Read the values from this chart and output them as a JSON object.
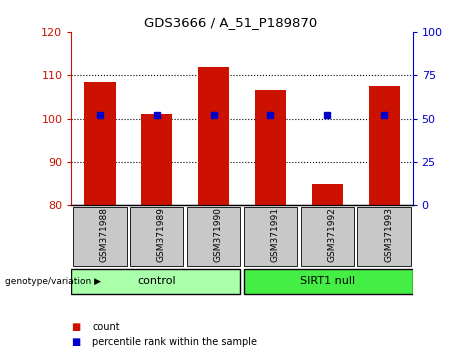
{
  "title": "GDS3666 / A_51_P189870",
  "samples": [
    "GSM371988",
    "GSM371989",
    "GSM371990",
    "GSM371991",
    "GSM371992",
    "GSM371993"
  ],
  "counts": [
    108.5,
    101.0,
    112.0,
    106.5,
    85.0,
    107.5
  ],
  "percentiles": [
    52,
    52,
    52,
    52,
    52,
    52
  ],
  "bar_bottom": 80,
  "ylim_left": [
    80,
    120
  ],
  "ylim_right": [
    0,
    100
  ],
  "yticks_left": [
    80,
    90,
    100,
    110,
    120
  ],
  "yticks_right": [
    0,
    25,
    50,
    75,
    100
  ],
  "bar_color": "#CC1100",
  "marker_color": "#0000CC",
  "control_label": "control",
  "sirt1_label": "SIRT1 null",
  "control_color": "#AAFFAA",
  "sirt1_color": "#44EE44",
  "sample_bg_color": "#C8C8C8",
  "genotype_label": "genotype/variation",
  "legend_count_label": "count",
  "legend_pct_label": "percentile rank within the sample",
  "left_tick_color": "#CC1100",
  "right_tick_color": "#0000CC"
}
